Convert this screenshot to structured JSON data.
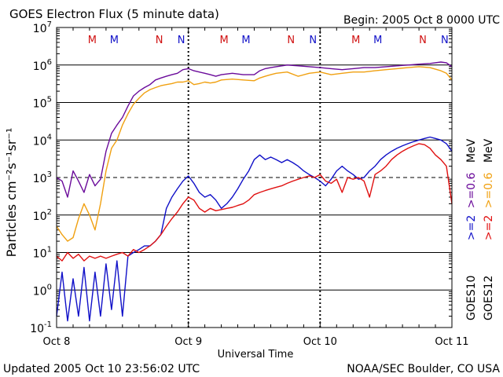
{
  "chart_data": {
    "type": "line",
    "title": "GOES Electron Flux (5 minute data)",
    "begin_label": "Begin: 2005 Oct 8 0000 UTC",
    "xlabel": "Universal Time",
    "ylabel": "Particles cm⁻²s⁻¹sr⁻¹",
    "y_scale": "log",
    "ylim": [
      0.1,
      10000000
    ],
    "y_ticks": [
      {
        "base": "10",
        "exp": "7"
      },
      {
        "base": "10",
        "exp": "6"
      },
      {
        "base": "10",
        "exp": "5"
      },
      {
        "base": "10",
        "exp": "4"
      },
      {
        "base": "10",
        "exp": "3"
      },
      {
        "base": "10",
        "exp": "2"
      },
      {
        "base": "10",
        "exp": "1"
      },
      {
        "base": "10",
        "exp": "0"
      },
      {
        "base": "10",
        "exp": "-1"
      }
    ],
    "x_range_hours": [
      0,
      72
    ],
    "x_ticks": [
      {
        "label": "Oct 8",
        "hour": 0
      },
      {
        "label": "Oct 9",
        "hour": 24
      },
      {
        "label": "Oct 10",
        "hour": 48
      },
      {
        "label": "Oct 11",
        "hour": 72
      }
    ],
    "threshold_line": 1000,
    "markers": [
      {
        "letter": "M",
        "hour": 6.5,
        "color": "#d01010"
      },
      {
        "letter": "M",
        "hour": 10.5,
        "color": "#1010c8"
      },
      {
        "letter": "N",
        "hour": 18.7,
        "color": "#d01010"
      },
      {
        "letter": "N",
        "hour": 22.7,
        "color": "#1010c8"
      },
      {
        "letter": "M",
        "hour": 30.5,
        "color": "#d01010"
      },
      {
        "letter": "M",
        "hour": 34.5,
        "color": "#1010c8"
      },
      {
        "letter": "N",
        "hour": 42.7,
        "color": "#d01010"
      },
      {
        "letter": "N",
        "hour": 46.7,
        "color": "#1010c8"
      },
      {
        "letter": "M",
        "hour": 54.5,
        "color": "#d01010"
      },
      {
        "letter": "M",
        "hour": 58.5,
        "color": "#1010c8"
      },
      {
        "letter": "N",
        "hour": 66.7,
        "color": "#d01010"
      },
      {
        "letter": "N",
        "hour": 70.7,
        "color": "#1010c8"
      }
    ],
    "legend": [
      {
        "satellite": "GOES10",
        "ge2": ">=2",
        "ge06": ">=0.6",
        "unit": "MeV",
        "ge2_color": "#1010c8",
        "ge06_color": "#6a0a9a"
      },
      {
        "satellite": "GOES12",
        "ge2": ">=2",
        "ge06": ">=0.6",
        "unit": "MeV",
        "ge2_color": "#e01010",
        "ge06_color": "#f0a010"
      }
    ],
    "series": [
      {
        "satellite": "GOES10",
        "energy": ">=0.6 MeV",
        "color": "#6a0a9a",
        "hours": [
          0,
          1,
          2,
          3,
          4,
          5,
          6,
          7,
          8,
          9,
          10,
          11,
          12,
          13,
          14,
          15,
          16,
          17,
          18,
          19,
          20,
          21,
          22,
          23,
          24,
          25,
          26,
          27,
          28,
          29,
          30,
          32,
          34,
          36,
          37,
          38,
          39,
          40,
          42,
          44,
          46,
          48,
          50,
          52,
          54,
          56,
          58,
          60,
          62,
          64,
          66,
          68,
          70,
          71,
          72
        ],
        "values": [
          1000,
          800,
          300,
          1500,
          800,
          400,
          1200,
          600,
          900,
          5000,
          15000,
          25000,
          40000,
          80000,
          150000,
          200000,
          250000,
          300000,
          400000,
          450000,
          500000,
          550000,
          600000,
          750000,
          800000,
          700000,
          650000,
          600000,
          550000,
          500000,
          550000,
          600000,
          550000,
          550000,
          700000,
          800000,
          850000,
          900000,
          1000000,
          950000,
          900000,
          850000,
          800000,
          750000,
          800000,
          850000,
          850000,
          900000,
          950000,
          1000000,
          1050000,
          1100000,
          1200000,
          1150000,
          900000
        ]
      },
      {
        "satellite": "GOES12",
        "energy": ">=0.6 MeV",
        "color": "#f0a010",
        "hours": [
          0,
          1,
          2,
          3,
          4,
          5,
          6,
          7,
          8,
          9,
          10,
          11,
          12,
          13,
          14,
          15,
          16,
          17,
          18,
          19,
          20,
          21,
          22,
          23,
          24,
          25,
          26,
          27,
          28,
          29,
          30,
          32,
          34,
          36,
          37,
          38,
          39,
          40,
          42,
          44,
          46,
          48,
          50,
          52,
          54,
          56,
          58,
          60,
          62,
          64,
          66,
          68,
          70,
          71,
          72
        ],
        "values": [
          50,
          30,
          20,
          25,
          80,
          200,
          100,
          40,
          200,
          1500,
          6000,
          10000,
          25000,
          50000,
          90000,
          130000,
          180000,
          220000,
          250000,
          280000,
          300000,
          320000,
          350000,
          350000,
          380000,
          300000,
          320000,
          350000,
          330000,
          350000,
          400000,
          420000,
          400000,
          380000,
          450000,
          500000,
          550000,
          600000,
          650000,
          500000,
          600000,
          650000,
          550000,
          600000,
          650000,
          650000,
          700000,
          750000,
          800000,
          850000,
          900000,
          850000,
          700000,
          600000,
          400000
        ]
      },
      {
        "satellite": "GOES10",
        "energy": ">=2 MeV",
        "color": "#1010c8",
        "hours": [
          0,
          1,
          2,
          3,
          4,
          5,
          6,
          7,
          8,
          9,
          10,
          11,
          12,
          13,
          14,
          15,
          16,
          17,
          18,
          19,
          20,
          21,
          22,
          23,
          24,
          25,
          26,
          27,
          28,
          29,
          30,
          31,
          32,
          33,
          34,
          35,
          36,
          37,
          38,
          39,
          40,
          41,
          42,
          43,
          44,
          45,
          46,
          47,
          48,
          49,
          50,
          51,
          52,
          53,
          54,
          55,
          56,
          57,
          58,
          59,
          60,
          61,
          62,
          63,
          64,
          65,
          66,
          67,
          68,
          69,
          70,
          71,
          72
        ],
        "values": [
          0.2,
          3,
          0.15,
          2,
          0.2,
          4,
          0.15,
          3,
          0.2,
          5,
          0.3,
          6,
          0.2,
          8,
          10,
          12,
          15,
          15,
          20,
          30,
          150,
          300,
          500,
          800,
          1100,
          700,
          400,
          300,
          350,
          250,
          150,
          200,
          300,
          500,
          900,
          1500,
          3000,
          4000,
          3000,
          3500,
          3000,
          2500,
          3000,
          2500,
          2000,
          1500,
          1200,
          1000,
          800,
          600,
          900,
          1500,
          2000,
          1500,
          1200,
          900,
          1000,
          1500,
          2000,
          3000,
          4000,
          5000,
          6000,
          7000,
          8000,
          9000,
          10000,
          11000,
          12000,
          11000,
          10000,
          8000,
          5000
        ]
      },
      {
        "satellite": "GOES12",
        "energy": ">=2 MeV",
        "color": "#e01010",
        "hours": [
          0,
          1,
          2,
          3,
          4,
          5,
          6,
          7,
          8,
          9,
          10,
          11,
          12,
          13,
          14,
          15,
          16,
          17,
          18,
          19,
          20,
          21,
          22,
          23,
          24,
          25,
          26,
          27,
          28,
          29,
          30,
          31,
          32,
          33,
          34,
          35,
          36,
          37,
          38,
          39,
          40,
          41,
          42,
          43,
          44,
          45,
          46,
          47,
          48,
          49,
          50,
          51,
          52,
          53,
          54,
          55,
          56,
          57,
          58,
          59,
          60,
          61,
          62,
          63,
          64,
          65,
          66,
          67,
          68,
          69,
          70,
          71,
          72
        ],
        "values": [
          8,
          6,
          10,
          7,
          9,
          6,
          8,
          7,
          8,
          7,
          8,
          9,
          10,
          8,
          12,
          10,
          12,
          15,
          20,
          30,
          50,
          80,
          120,
          200,
          300,
          250,
          150,
          120,
          150,
          130,
          140,
          150,
          160,
          180,
          200,
          250,
          350,
          400,
          450,
          500,
          550,
          600,
          700,
          800,
          900,
          1000,
          1100,
          1000,
          1200,
          800,
          700,
          900,
          400,
          1000,
          900,
          1000,
          800,
          300,
          1200,
          1500,
          2000,
          3000,
          4000,
          5000,
          6000,
          7000,
          8000,
          7500,
          6000,
          4000,
          3000,
          2000,
          200
        ]
      }
    ],
    "annotations": []
  },
  "footer": {
    "updated": "Updated 2005 Oct 10 23:56:02 UTC",
    "source": "NOAA/SEC Boulder, CO USA"
  }
}
